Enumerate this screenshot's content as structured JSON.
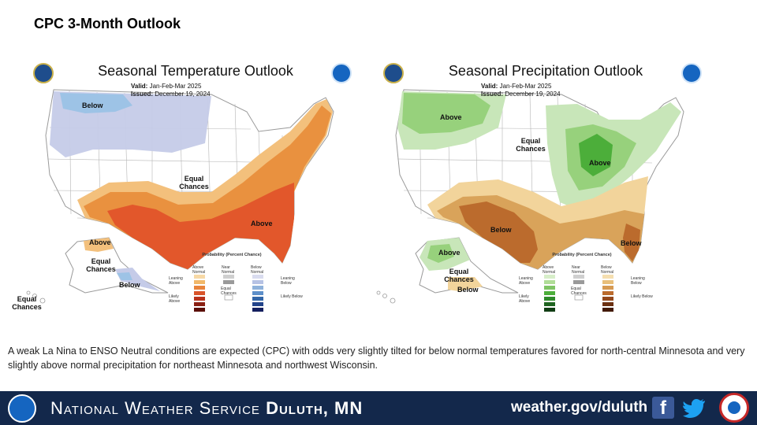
{
  "slide": {
    "title": "CPC 3-Month Outlook"
  },
  "temperature_map": {
    "title": "Seasonal Temperature Outlook",
    "valid_label": "Valid:",
    "valid_value": "Jan-Feb-Mar 2025",
    "issued_label": "Issued:",
    "issued_value": "December 19, 2024",
    "labels": {
      "below": "Below",
      "equal_chances": "Equal Chances",
      "above": "Above",
      "ak_above": "Above",
      "ak_equal_chances": "Equal Chances",
      "ak_below": "Below",
      "hawaii_equal_chances": "Equal Chances"
    },
    "colors": {
      "below_light": "#c5cbe8",
      "below_mid": "#9dc3e6",
      "above_1": "#f3c07c",
      "above_2": "#e9913f",
      "above_3": "#e2572b"
    }
  },
  "precipitation_map": {
    "title": "Seasonal Precipitation Outlook",
    "valid_label": "Valid:",
    "valid_value": "Jan-Feb-Mar 2025",
    "issued_label": "Issued:",
    "issued_value": "December 19, 2024",
    "labels": {
      "above": "Above",
      "equal_chances": "Equal Chances",
      "above_great_lakes": "Above",
      "below": "Below",
      "below_florida": "Below",
      "ak_above": "Above",
      "ak_equal_chances": "Equal Chances",
      "ak_below": "Below"
    },
    "colors": {
      "above_1": "#c8e6b9",
      "above_2": "#97d17c",
      "above_3": "#4cae3a",
      "below_1": "#f2d49b",
      "below_2": "#d9a35a",
      "below_3": "#bb6b2d"
    }
  },
  "legend": {
    "title": "Probability (Percent Chance)",
    "col_above": "Above Normal",
    "col_near": "Near Normal",
    "col_below": "Below Normal",
    "leaning_above": "Leaning Above",
    "likely_above": "Likely Above",
    "leaning_below": "Leaning Below",
    "likely_below": "Likely Below",
    "equal_chances": "Equal Chances",
    "ranges": [
      "33-40%",
      "40-50%",
      "50-60%",
      "60-70%",
      "70-80%",
      "80-90%",
      "90-100%"
    ]
  },
  "caption": "A weak La Nina to ENSO Neutral conditions are expected (CPC) with odds very slightly tilted for below normal temperatures favored for north-central Minnesota and very slightly above normal precipitation for northeast Minnesota and northwest Wisconsin.",
  "footer": {
    "org_prefix": "National Weather Service",
    "org_office": "Duluth, MN",
    "url": "weather.gov/duluth",
    "icons": [
      "noaa-logo-icon",
      "facebook-icon",
      "twitter-icon",
      "nws-logo-icon"
    ]
  }
}
